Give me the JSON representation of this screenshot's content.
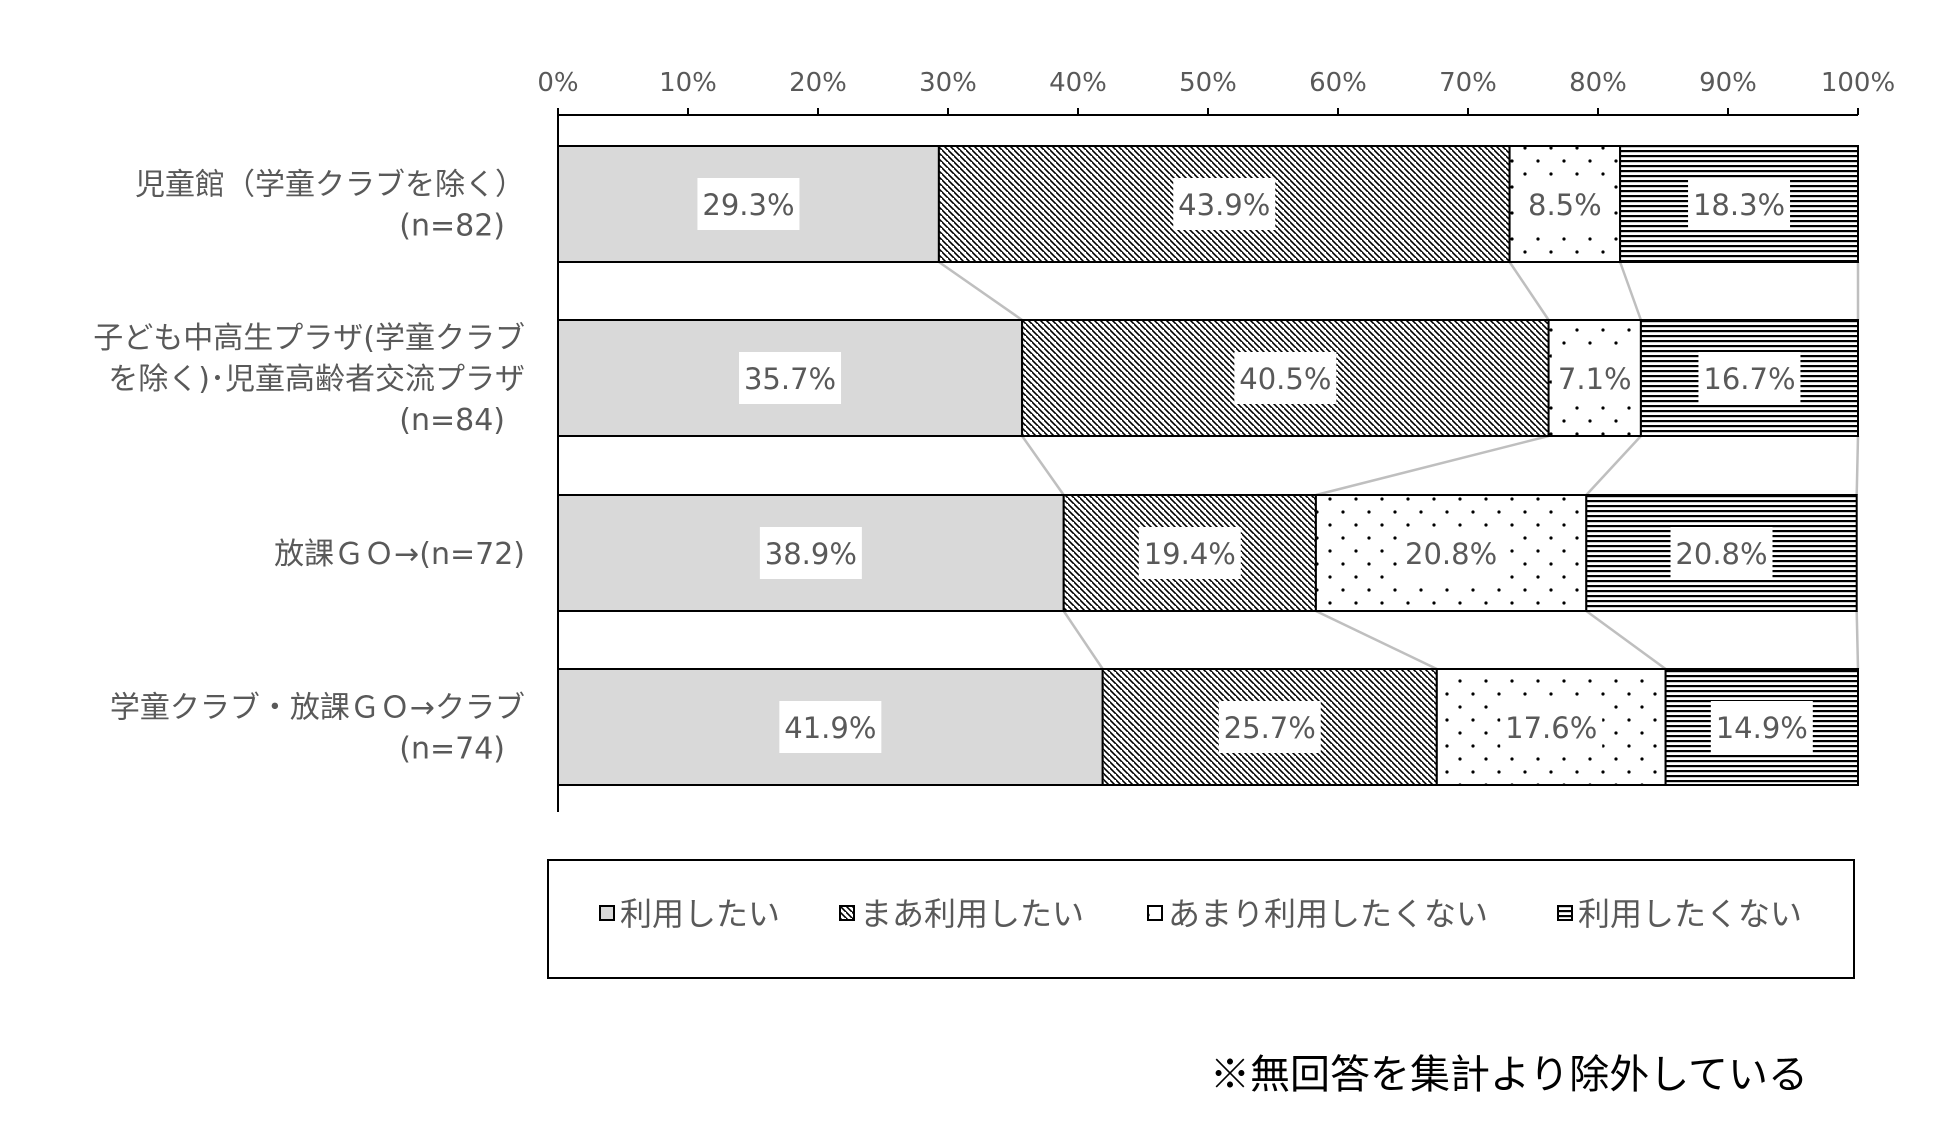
{
  "chart_data": {
    "type": "bar",
    "orientation": "horizontal",
    "stacked": "100%",
    "x_ticks": [
      "0%",
      "10%",
      "20%",
      "30%",
      "40%",
      "50%",
      "60%",
      "70%",
      "80%",
      "90%",
      "100%"
    ],
    "xlim": [
      0,
      100
    ],
    "categories": [
      [
        "児童館（学童クラブを除く）",
        "(n=82)"
      ],
      [
        "子ども中高生プラザ(学童クラブ",
        "を除く)･児童高齢者交流プラザ",
        "(n=84)"
      ],
      [
        "放課ＧＯ→(n=72)"
      ],
      [
        "学童クラブ・放課ＧＯ→クラブ",
        "(n=74)"
      ]
    ],
    "series": [
      {
        "name": "利用したい",
        "values": [
          29.3,
          35.7,
          38.9,
          41.9
        ],
        "labels": [
          "29.3%",
          "35.7%",
          "38.9%",
          "41.9%"
        ],
        "pattern": "solid-gray"
      },
      {
        "name": "まあ利用したい",
        "values": [
          43.9,
          40.5,
          19.4,
          25.7
        ],
        "labels": [
          "43.9%",
          "40.5%",
          "19.4%",
          "25.7%"
        ],
        "pattern": "diagonal"
      },
      {
        "name": "あまり利用したくない",
        "values": [
          8.5,
          7.1,
          20.8,
          17.6
        ],
        "labels": [
          "8.5%",
          "7.1%",
          "20.8%",
          "17.6%"
        ],
        "pattern": "dots"
      },
      {
        "name": "利用したくない",
        "values": [
          18.3,
          16.7,
          20.8,
          14.9
        ],
        "labels": [
          "18.3%",
          "16.7%",
          "20.8%",
          "14.9%"
        ],
        "pattern": "horizontal"
      }
    ],
    "legend_position": "bottom",
    "series_lines": true,
    "colors": {
      "bar_gray": "#d9d9d9",
      "pattern_ink": "#000000",
      "connector": "#bfbfbf",
      "text": "#595959"
    }
  },
  "note": "※無回答を集計より除外している"
}
